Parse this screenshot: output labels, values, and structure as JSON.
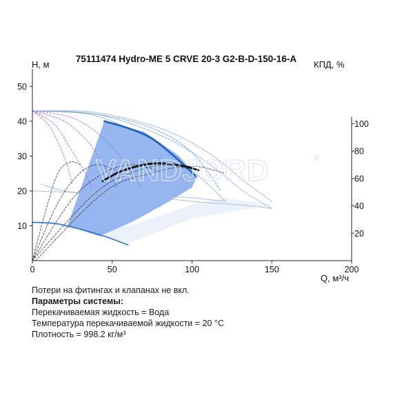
{
  "chart_data": {
    "type": "line",
    "title": "75111474 Hydro-ME 5 CRVE 20-3 G2-B-D-150-16-A",
    "xlabel": "Q, м³/ч",
    "ylabel_left": "H, м",
    "ylabel_right": "КПД, %",
    "xlim": [
      0,
      200
    ],
    "ylim_left": [
      0,
      55
    ],
    "ylim_right": [
      0,
      140
    ],
    "x_ticks": [
      0,
      50,
      100,
      150,
      200
    ],
    "y_ticks_left": [
      10,
      20,
      30,
      40,
      50
    ],
    "y_ticks_right": [
      20,
      40,
      60,
      80,
      100
    ],
    "watermark": "VANDJORD",
    "watermark_mark": "®",
    "series": [
      {
        "kind": "operating-region",
        "color": "#8fb2ef",
        "points": [
          [
            22,
            10
          ],
          [
            42,
            7
          ],
          [
            62,
            11
          ],
          [
            82,
            16
          ],
          [
            100,
            21
          ],
          [
            103,
            24
          ],
          [
            92,
            30
          ],
          [
            70,
            37
          ],
          [
            45,
            40
          ]
        ]
      },
      {
        "kind": "lower-region",
        "color": "#e7effb",
        "points": [
          [
            0,
            11
          ],
          [
            20,
            10
          ],
          [
            40,
            9
          ],
          [
            60,
            10
          ],
          [
            80,
            13
          ],
          [
            100,
            16
          ],
          [
            120,
            18
          ],
          [
            150,
            16
          ],
          [
            100,
            12
          ],
          [
            60,
            5
          ],
          [
            30,
            9
          ]
        ]
      },
      {
        "kind": "head-max-speed",
        "color": "#1f5fbf",
        "points": [
          [
            45,
            40
          ],
          [
            60,
            38
          ],
          [
            75,
            35
          ],
          [
            90,
            29.5
          ],
          [
            103,
            24
          ]
        ]
      },
      {
        "kind": "head-min-speed",
        "color": "#2d6fd0",
        "points": [
          [
            0,
            11
          ],
          [
            15,
            10.6
          ],
          [
            30,
            9
          ],
          [
            45,
            7
          ],
          [
            60,
            4.5
          ]
        ]
      },
      {
        "kind": "efficiency",
        "axis": "right",
        "color": "#111111",
        "points": [
          [
            44,
            58
          ],
          [
            55,
            65
          ],
          [
            70,
            70
          ],
          [
            82,
            71
          ],
          [
            95,
            69
          ],
          [
            104,
            66
          ]
        ]
      },
      {
        "kind": "head-thin",
        "color": "#9bb8d8",
        "points": [
          [
            0,
            43
          ],
          [
            40,
            42
          ],
          [
            80,
            36
          ],
          [
            110,
            28
          ],
          [
            132,
            20
          ],
          [
            150,
            15
          ]
        ]
      },
      {
        "kind": "head-thin",
        "color": "#9bb8d8",
        "points": [
          [
            0,
            43
          ],
          [
            40,
            41.5
          ],
          [
            80,
            33
          ],
          [
            105,
            24
          ],
          [
            121,
            17
          ]
        ]
      },
      {
        "kind": "head-thin",
        "color": "#9bb8d8",
        "points": [
          [
            5,
            43
          ],
          [
            40,
            42.5
          ],
          [
            80,
            38
          ],
          [
            110,
            31
          ],
          [
            135,
            22
          ],
          [
            150,
            17
          ]
        ]
      },
      {
        "kind": "head-thin",
        "color": "#9bb8d8",
        "points": [
          [
            5,
            22
          ],
          [
            20,
            20
          ],
          [
            40,
            19
          ],
          [
            60,
            19
          ],
          [
            100,
            17
          ],
          [
            130,
            16
          ],
          [
            150,
            15
          ]
        ]
      },
      {
        "kind": "head-thin",
        "color": "#9bb8d8",
        "points": [
          [
            0,
            20
          ],
          [
            30,
            19.5
          ],
          [
            60,
            19
          ],
          [
            100,
            18
          ],
          [
            120,
            17
          ]
        ]
      },
      {
        "kind": "head-partial",
        "color": "#a36ad0",
        "points": [
          [
            0,
            43
          ],
          [
            25,
            41
          ],
          [
            45,
            35
          ],
          [
            58,
            28
          ],
          [
            68,
            21
          ]
        ]
      },
      {
        "kind": "head-partial",
        "color": "#a36ad0",
        "points": [
          [
            0,
            43
          ],
          [
            20,
            40
          ],
          [
            35,
            34
          ],
          [
            45,
            27
          ],
          [
            53,
            21
          ]
        ]
      },
      {
        "kind": "head-partial",
        "color": "#a36ad0",
        "points": [
          [
            0,
            43
          ],
          [
            14,
            39
          ],
          [
            24,
            32
          ],
          [
            32,
            26
          ],
          [
            37,
            21
          ]
        ]
      },
      {
        "kind": "head-partial",
        "color": "#a36ad0",
        "points": [
          [
            0,
            43
          ],
          [
            10,
            39
          ],
          [
            17,
            33
          ],
          [
            22,
            27
          ],
          [
            25,
            22
          ]
        ]
      },
      {
        "kind": "head-partial",
        "color": "#4c8be6",
        "points": [
          [
            0,
            43
          ],
          [
            40,
            42
          ],
          [
            75,
            38
          ],
          [
            100,
            31
          ],
          [
            118,
            20
          ]
        ]
      },
      {
        "kind": "eff-partial",
        "axis": "right",
        "color": "#333333",
        "points": [
          [
            0,
            0
          ],
          [
            8,
            35
          ],
          [
            16,
            64
          ],
          [
            24,
            72
          ],
          [
            30,
            70
          ]
        ]
      },
      {
        "kind": "eff-partial",
        "axis": "right",
        "color": "#333333",
        "points": [
          [
            0,
            0
          ],
          [
            15,
            40
          ],
          [
            28,
            62
          ],
          [
            40,
            70
          ],
          [
            52,
            66
          ]
        ]
      },
      {
        "kind": "eff-partial",
        "axis": "right",
        "color": "#333333",
        "points": [
          [
            0,
            0
          ],
          [
            25,
            45
          ],
          [
            45,
            64
          ],
          [
            62,
            70
          ],
          [
            78,
            66
          ]
        ]
      },
      {
        "kind": "eff-partial",
        "axis": "right",
        "color": "#333333",
        "points": [
          [
            0,
            0
          ],
          [
            38,
            48
          ],
          [
            62,
            64
          ],
          [
            84,
            70
          ],
          [
            100,
            66
          ]
        ]
      },
      {
        "kind": "eff-partial",
        "axis": "right",
        "color": "#333333",
        "points": [
          [
            2,
            0
          ],
          [
            45,
            50
          ],
          [
            75,
            64
          ],
          [
            100,
            69
          ],
          [
            120,
            64
          ]
        ]
      }
    ]
  },
  "notes": {
    "line1": "Потери на фитингах и клапанах не вкл.",
    "heading": "Параметры системы:",
    "line2": "Перекачиваемая жидкость = Вода",
    "line3": "Температура перекачиваемой жидкости = 20 °C",
    "line4": "Плотность = 998.2 кг/м³"
  }
}
